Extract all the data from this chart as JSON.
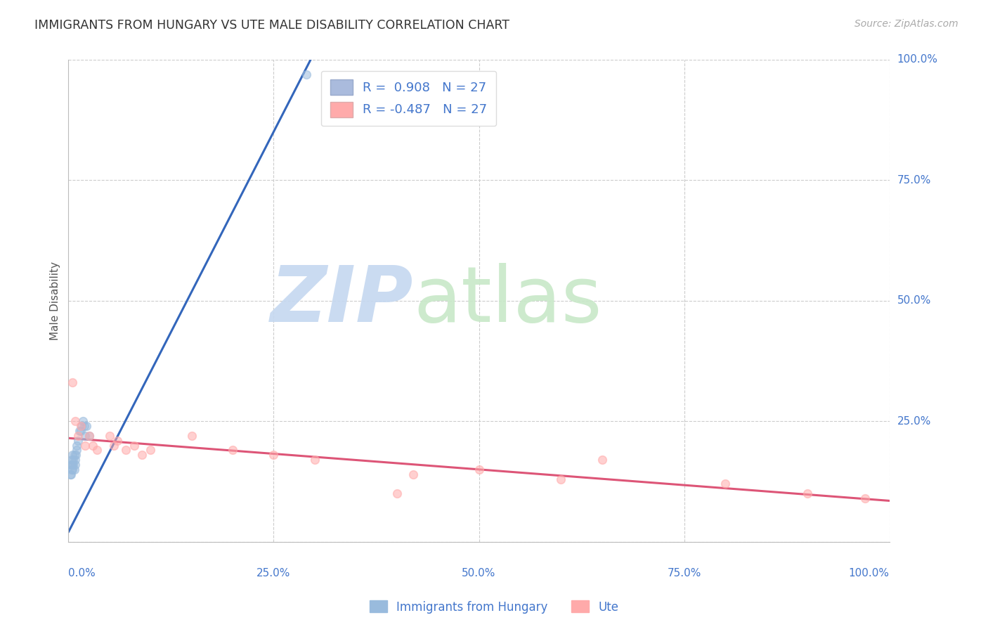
{
  "title": "IMMIGRANTS FROM HUNGARY VS UTE MALE DISABILITY CORRELATION CHART",
  "source": "Source: ZipAtlas.com",
  "ylabel": "Male Disability",
  "xlim": [
    0.0,
    1.0
  ],
  "ylim": [
    0.0,
    1.0
  ],
  "background_color": "#ffffff",
  "grid_color": "#cccccc",
  "legend_color1": "#aabbdd",
  "legend_color2": "#ffaaaa",
  "scatter_color1": "#99bbdd",
  "scatter_color2": "#ffaaaa",
  "text_color_blue": "#4477cc",
  "blue_line_color": "#3366bb",
  "pink_line_color": "#dd5577",
  "blue_scatter_x": [
    0.002,
    0.003,
    0.003,
    0.004,
    0.004,
    0.005,
    0.005,
    0.005,
    0.006,
    0.006,
    0.007,
    0.007,
    0.008,
    0.008,
    0.009,
    0.01,
    0.01,
    0.012,
    0.013,
    0.015,
    0.016,
    0.018,
    0.019,
    0.02,
    0.022,
    0.025,
    0.29
  ],
  "blue_scatter_y": [
    0.14,
    0.14,
    0.16,
    0.15,
    0.17,
    0.15,
    0.16,
    0.18,
    0.16,
    0.17,
    0.15,
    0.18,
    0.16,
    0.17,
    0.18,
    0.19,
    0.2,
    0.21,
    0.23,
    0.23,
    0.24,
    0.25,
    0.24,
    0.22,
    0.24,
    0.22,
    0.97
  ],
  "pink_scatter_x": [
    0.005,
    0.008,
    0.012,
    0.015,
    0.02,
    0.025,
    0.03,
    0.035,
    0.05,
    0.055,
    0.06,
    0.07,
    0.08,
    0.09,
    0.1,
    0.15,
    0.2,
    0.25,
    0.3,
    0.4,
    0.42,
    0.5,
    0.6,
    0.65,
    0.8,
    0.9,
    0.97
  ],
  "pink_scatter_y": [
    0.33,
    0.25,
    0.22,
    0.24,
    0.2,
    0.22,
    0.2,
    0.19,
    0.22,
    0.2,
    0.21,
    0.19,
    0.2,
    0.18,
    0.19,
    0.22,
    0.19,
    0.18,
    0.17,
    0.1,
    0.14,
    0.15,
    0.13,
    0.17,
    0.12,
    0.1,
    0.09
  ],
  "blue_line_x": [
    0.0,
    0.295
  ],
  "blue_line_y": [
    0.02,
    1.0
  ],
  "pink_line_x": [
    0.0,
    1.0
  ],
  "pink_line_y": [
    0.215,
    0.085
  ],
  "marker_size": 70,
  "marker_alpha": 0.55,
  "marker_facecolor_alpha": 0.4,
  "ytick_values": [
    0.0,
    0.25,
    0.5,
    0.75,
    1.0
  ],
  "ytick_labels": [
    "",
    "25.0%",
    "50.0%",
    "75.0%",
    "100.0%"
  ],
  "xtick_values": [
    0.0,
    0.25,
    0.5,
    0.75,
    1.0
  ],
  "xtick_labels": [
    "0.0%",
    "25.0%",
    "50.0%",
    "75.0%",
    "100.0%"
  ]
}
